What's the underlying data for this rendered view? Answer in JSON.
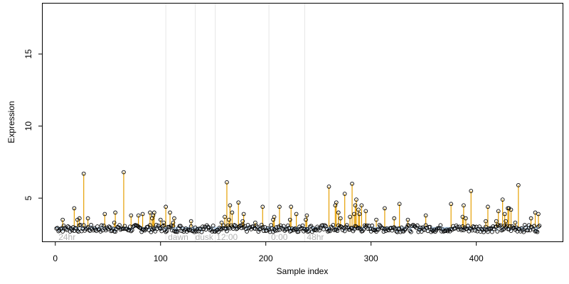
{
  "chart_data": {
    "type": "scatter",
    "title": "",
    "xlabel": "Sample index",
    "ylabel": "Expression",
    "xlim": [
      -12,
      482
    ],
    "ylim": [
      2,
      18.5
    ],
    "xticks": [
      0,
      100,
      200,
      300,
      400
    ],
    "yticks": [
      5,
      10,
      15
    ],
    "grid": false,
    "legend": "none",
    "baseline": 3.0,
    "colors": {
      "points": "#000000",
      "stems": "#e69f00",
      "baseline_band": "#a6c8e8",
      "dividers": "#e6e6e6",
      "region_labels": "#b4b4b4"
    },
    "dividers": [
      105,
      133,
      152,
      203,
      237
    ],
    "region_labels": [
      {
        "x": 3,
        "text": "24hr"
      },
      {
        "x": 107,
        "text": "dawn"
      },
      {
        "x": 133,
        "text": "dusk"
      },
      {
        "x": 153,
        "text": "12:00"
      },
      {
        "x": 205,
        "text": "0:00"
      },
      {
        "x": 239,
        "text": "48hr"
      }
    ],
    "background_points": {
      "count": 460,
      "x_start": 1,
      "x_end": 460,
      "y_min": 2.65,
      "y_max": 3.15
    },
    "peaks": [
      {
        "x": 7,
        "y": 3.5
      },
      {
        "x": 18,
        "y": 4.3
      },
      {
        "x": 21,
        "y": 3.5
      },
      {
        "x": 23,
        "y": 3.6
      },
      {
        "x": 27,
        "y": 6.7
      },
      {
        "x": 31,
        "y": 3.6
      },
      {
        "x": 47,
        "y": 3.9
      },
      {
        "x": 56,
        "y": 3.3
      },
      {
        "x": 57,
        "y": 4.0
      },
      {
        "x": 65,
        "y": 6.8
      },
      {
        "x": 72,
        "y": 3.8
      },
      {
        "x": 79,
        "y": 3.8
      },
      {
        "x": 83,
        "y": 3.9
      },
      {
        "x": 90,
        "y": 4.0
      },
      {
        "x": 92,
        "y": 3.6
      },
      {
        "x": 93,
        "y": 3.8
      },
      {
        "x": 94,
        "y": 4.0
      },
      {
        "x": 100,
        "y": 3.5
      },
      {
        "x": 103,
        "y": 3.3
      },
      {
        "x": 105,
        "y": 4.4
      },
      {
        "x": 109,
        "y": 4.0
      },
      {
        "x": 112,
        "y": 3.3
      },
      {
        "x": 113,
        "y": 3.6
      },
      {
        "x": 129,
        "y": 3.4
      },
      {
        "x": 158,
        "y": 3.3
      },
      {
        "x": 161,
        "y": 3.7
      },
      {
        "x": 163,
        "y": 6.1
      },
      {
        "x": 165,
        "y": 3.5
      },
      {
        "x": 166,
        "y": 4.5
      },
      {
        "x": 168,
        "y": 4.0
      },
      {
        "x": 174,
        "y": 4.7
      },
      {
        "x": 178,
        "y": 3.4
      },
      {
        "x": 179,
        "y": 3.9
      },
      {
        "x": 190,
        "y": 3.3
      },
      {
        "x": 197,
        "y": 4.4
      },
      {
        "x": 207,
        "y": 3.5
      },
      {
        "x": 208,
        "y": 3.7
      },
      {
        "x": 213,
        "y": 4.4
      },
      {
        "x": 223,
        "y": 3.5
      },
      {
        "x": 224,
        "y": 4.4
      },
      {
        "x": 229,
        "y": 3.9
      },
      {
        "x": 238,
        "y": 3.5
      },
      {
        "x": 239,
        "y": 3.8
      },
      {
        "x": 260,
        "y": 5.8
      },
      {
        "x": 266,
        "y": 4.5
      },
      {
        "x": 267,
        "y": 4.7
      },
      {
        "x": 269,
        "y": 4.0
      },
      {
        "x": 271,
        "y": 3.6
      },
      {
        "x": 275,
        "y": 5.3
      },
      {
        "x": 280,
        "y": 3.7
      },
      {
        "x": 282,
        "y": 6.0
      },
      {
        "x": 284,
        "y": 3.9
      },
      {
        "x": 285,
        "y": 4.5
      },
      {
        "x": 286,
        "y": 4.9
      },
      {
        "x": 288,
        "y": 4.2
      },
      {
        "x": 289,
        "y": 3.9
      },
      {
        "x": 291,
        "y": 4.5
      },
      {
        "x": 295,
        "y": 4.1
      },
      {
        "x": 305,
        "y": 3.5
      },
      {
        "x": 313,
        "y": 4.3
      },
      {
        "x": 322,
        "y": 3.6
      },
      {
        "x": 327,
        "y": 4.6
      },
      {
        "x": 335,
        "y": 3.5
      },
      {
        "x": 352,
        "y": 3.8
      },
      {
        "x": 376,
        "y": 4.6
      },
      {
        "x": 387,
        "y": 3.7
      },
      {
        "x": 388,
        "y": 4.5
      },
      {
        "x": 390,
        "y": 3.6
      },
      {
        "x": 395,
        "y": 5.5
      },
      {
        "x": 409,
        "y": 3.4
      },
      {
        "x": 411,
        "y": 4.4
      },
      {
        "x": 419,
        "y": 3.4
      },
      {
        "x": 421,
        "y": 4.1
      },
      {
        "x": 425,
        "y": 4.9
      },
      {
        "x": 427,
        "y": 3.9
      },
      {
        "x": 428,
        "y": 3.4
      },
      {
        "x": 430,
        "y": 4.3
      },
      {
        "x": 431,
        "y": 4.3
      },
      {
        "x": 433,
        "y": 4.2
      },
      {
        "x": 437,
        "y": 3.3
      },
      {
        "x": 440,
        "y": 5.9
      },
      {
        "x": 452,
        "y": 3.6
      },
      {
        "x": 456,
        "y": 4.0
      },
      {
        "x": 459,
        "y": 3.9
      }
    ]
  }
}
